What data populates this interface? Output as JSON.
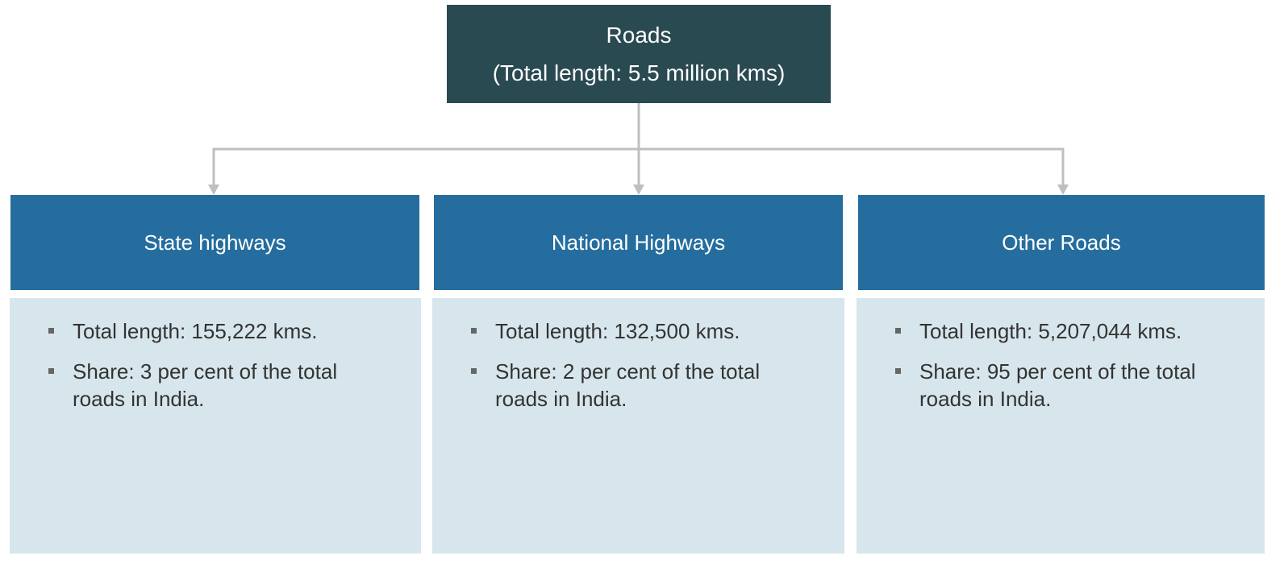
{
  "root": {
    "title": "Roads",
    "subtitle": "(Total length: 5.5 million kms)"
  },
  "nodes": [
    {
      "label": "State highways",
      "bullets": [
        "Total length: 155,222 kms.",
        "Share: 3 per cent of the total roads in India."
      ]
    },
    {
      "label": "National Highways",
      "bullets": [
        "Total length: 132,500 kms.",
        "Share: 2 per cent of the total roads in India."
      ]
    },
    {
      "label": "Other Roads",
      "bullets": [
        "Total length: 5,207,044 kms.",
        "Share: 95 per cent of the total roads in India."
      ]
    }
  ]
}
